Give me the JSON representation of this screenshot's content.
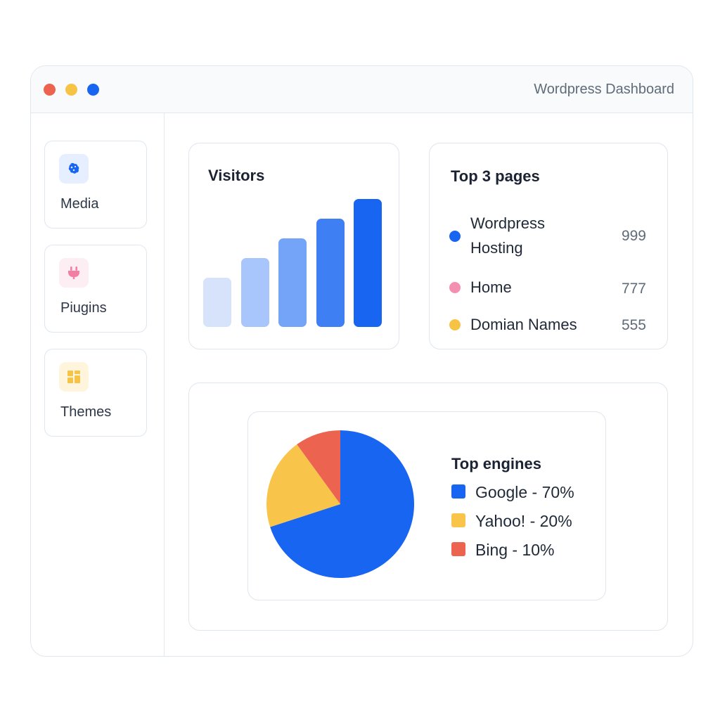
{
  "window": {
    "title": "Wordpress Dashboard",
    "controls": [
      "close",
      "minimize",
      "maximize"
    ]
  },
  "sidebar": {
    "items": [
      {
        "label": "Media",
        "icon": "media-icon",
        "color": "#1865f2",
        "bg": "#e6efff"
      },
      {
        "label": "Piugins",
        "icon": "plug-icon",
        "color": "#f27ea3",
        "bg": "#fdeef3"
      },
      {
        "label": "Themes",
        "icon": "layout-icon",
        "color": "#f6c344",
        "bg": "#fff5dc"
      }
    ]
  },
  "visitors": {
    "title": "Visitors",
    "bar_colors": [
      "#d6e3fb",
      "#a8c6fb",
      "#74a4f8",
      "#3f7ff4",
      "#1865f2"
    ]
  },
  "top_pages": {
    "title": "Top 3 pages",
    "items": [
      {
        "name": "Wordpress\nHosting",
        "count": "999",
        "color": "#1865f2"
      },
      {
        "name": "Home",
        "count": "777",
        "color": "#f48fb1"
      },
      {
        "name": "Domian Names",
        "count": "555",
        "color": "#f6c344"
      }
    ]
  },
  "engines": {
    "title": "Top engines",
    "legend": [
      "Google - 70%",
      "Yahoo! - 20%",
      "Bing - 10%"
    ]
  },
  "chart_data": [
    {
      "type": "bar",
      "title": "Visitors",
      "categories": [
        "",
        "",
        "",
        "",
        ""
      ],
      "values": [
        35,
        49,
        63,
        77,
        91
      ],
      "ylim": [
        0,
        100
      ],
      "grid": false
    },
    {
      "type": "pie",
      "title": "Top engines",
      "categories": [
        "Google",
        "Yahoo!",
        "Bing"
      ],
      "values": [
        70,
        20,
        10
      ],
      "colors": [
        "#1865f2",
        "#f8c54a",
        "#ec6350"
      ],
      "legend": "right"
    }
  ]
}
